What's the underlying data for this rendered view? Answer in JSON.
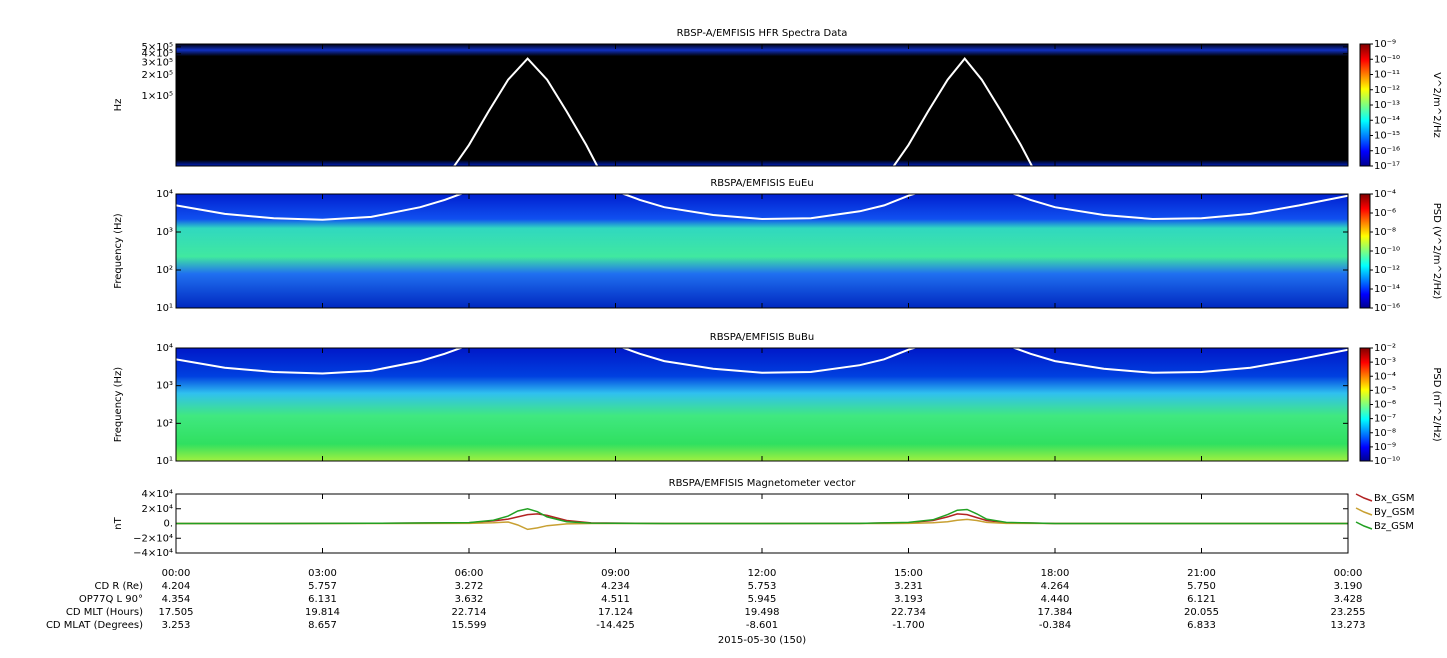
{
  "chart_data": [
    {
      "type": "spectrogram",
      "title": "RBSP-A/EMFISIS  HFR Spectra Data",
      "ylabel": "Hz",
      "log": true,
      "xlim": [
        0,
        24
      ],
      "xticks": [
        0,
        3,
        6,
        9,
        12,
        15,
        18,
        21,
        24
      ],
      "ylim": [
        10000,
        550000
      ],
      "yticks": [
        {
          "value": 100000,
          "label": "1×10⁵"
        },
        {
          "value": 200000,
          "label": "2×10⁵"
        },
        {
          "value": 300000,
          "label": "3×10⁵"
        },
        {
          "value": 400000,
          "label": "4×10⁵"
        },
        {
          "value": 500000,
          "label": "5×10⁵"
        }
      ],
      "colorbar_label": "V^2/m^2/Hz",
      "clim": [
        1e-17,
        1e-09
      ],
      "cticks": [
        {
          "value": 1e-17,
          "label": "10⁻¹⁷"
        },
        {
          "value": 1e-16,
          "label": "10⁻¹⁶"
        },
        {
          "value": 1e-15,
          "label": "10⁻¹⁵"
        },
        {
          "value": 1e-14,
          "label": "10⁻¹⁴"
        },
        {
          "value": 1e-13,
          "label": "10⁻¹³"
        },
        {
          "value": 1e-12,
          "label": "10⁻¹²"
        },
        {
          "value": 1e-11,
          "label": "10⁻¹¹"
        },
        {
          "value": 1e-10,
          "label": "10⁻¹⁰"
        },
        {
          "value": 1e-09,
          "label": "10⁻⁹"
        }
      ],
      "series": [
        {
          "color": "#ffffff",
          "x": [
            5.6,
            6.0,
            6.4,
            6.8,
            7.2,
            7.6,
            8.0,
            8.4,
            8.7,
            12,
            14.6,
            15.0,
            15.4,
            15.8,
            16.15,
            16.5,
            16.9,
            17.3,
            17.6
          ],
          "values": [
            8000,
            20000,
            60000,
            170000,
            340000,
            170000,
            60000,
            20000,
            8000,
            null,
            8000,
            20000,
            60000,
            170000,
            340000,
            170000,
            60000,
            20000,
            8000
          ]
        }
      ]
    },
    {
      "type": "spectrogram",
      "title": "RBSPA/EMFISIS  EuEu",
      "ylabel": "Frequency (Hz)",
      "log": true,
      "xlim": [
        0,
        24
      ],
      "xticks": [
        0,
        3,
        6,
        9,
        12,
        15,
        18,
        21,
        24
      ],
      "ylim": [
        10,
        10000
      ],
      "yticks": [
        {
          "value": 10,
          "label": "10¹"
        },
        {
          "value": 100,
          "label": "10²"
        },
        {
          "value": 1000,
          "label": "10³"
        },
        {
          "value": 10000,
          "label": "10⁴"
        }
      ],
      "colorbar_label": "PSD (V^2/m^2/Hz)",
      "clim": [
        1e-16,
        0.0001
      ],
      "cticks": [
        {
          "value": 1e-16,
          "label": "10⁻¹⁶"
        },
        {
          "value": 1e-14,
          "label": "10⁻¹⁴"
        },
        {
          "value": 1e-12,
          "label": "10⁻¹²"
        },
        {
          "value": 1e-10,
          "label": "10⁻¹⁰"
        },
        {
          "value": 1e-08,
          "label": "10⁻⁸"
        },
        {
          "value": 1e-06,
          "label": "10⁻⁶"
        },
        {
          "value": 0.0001,
          "label": "10⁻⁴"
        }
      ],
      "series": [
        {
          "color": "#ffffff",
          "x": [
            0,
            1,
            2,
            3,
            4,
            5,
            5.5,
            6,
            9,
            9.5,
            10,
            11,
            12,
            13,
            14,
            14.5,
            15,
            15.3,
            17,
            17.5,
            18,
            19,
            20,
            21,
            22,
            23,
            24
          ],
          "values": [
            5000,
            3000,
            2300,
            2100,
            2500,
            4500,
            7000,
            12000,
            12000,
            7000,
            4500,
            2800,
            2200,
            2300,
            3500,
            5000,
            9000,
            12000,
            12000,
            7000,
            4500,
            2800,
            2200,
            2300,
            3000,
            5000,
            9000
          ]
        }
      ]
    },
    {
      "type": "spectrogram",
      "title": "RBSPA/EMFISIS  BuBu",
      "ylabel": "Frequency (Hz)",
      "log": true,
      "xlim": [
        0,
        24
      ],
      "xticks": [
        0,
        3,
        6,
        9,
        12,
        15,
        18,
        21,
        24
      ],
      "ylim": [
        10,
        10000
      ],
      "yticks": [
        {
          "value": 10,
          "label": "10¹"
        },
        {
          "value": 100,
          "label": "10²"
        },
        {
          "value": 1000,
          "label": "10³"
        },
        {
          "value": 10000,
          "label": "10⁴"
        }
      ],
      "colorbar_label": "PSD (nT^2/Hz)",
      "clim": [
        1e-10,
        0.01
      ],
      "cticks": [
        {
          "value": 1e-10,
          "label": "10⁻¹⁰"
        },
        {
          "value": 1e-09,
          "label": "10⁻⁹"
        },
        {
          "value": 1e-08,
          "label": "10⁻⁸"
        },
        {
          "value": 1e-07,
          "label": "10⁻⁷"
        },
        {
          "value": 1e-06,
          "label": "10⁻⁶"
        },
        {
          "value": 1e-05,
          "label": "10⁻⁵"
        },
        {
          "value": 0.0001,
          "label": "10⁻⁴"
        },
        {
          "value": 0.001,
          "label": "10⁻³"
        },
        {
          "value": 0.01,
          "label": "10⁻²"
        }
      ],
      "series": [
        {
          "color": "#ffffff",
          "x": [
            0,
            1,
            2,
            3,
            4,
            5,
            5.5,
            6,
            9,
            9.5,
            10,
            11,
            12,
            13,
            14,
            14.5,
            15,
            15.3,
            17,
            17.5,
            18,
            19,
            20,
            21,
            22,
            23,
            24
          ],
          "values": [
            5000,
            3000,
            2300,
            2100,
            2500,
            4500,
            7000,
            12000,
            12000,
            7000,
            4500,
            2800,
            2200,
            2300,
            3500,
            5000,
            9000,
            12000,
            12000,
            7000,
            4500,
            2800,
            2200,
            2300,
            3000,
            5000,
            9000
          ]
        }
      ]
    },
    {
      "type": "line",
      "title": "RBSPA/EMFISIS  Magnetometer vector",
      "ylabel": "nT",
      "log": false,
      "xlim": [
        0,
        24
      ],
      "xticks": [
        {
          "value": 0,
          "label": "00:00"
        },
        {
          "value": 3,
          "label": "03:00"
        },
        {
          "value": 6,
          "label": "06:00"
        },
        {
          "value": 9,
          "label": "09:00"
        },
        {
          "value": 12,
          "label": "12:00"
        },
        {
          "value": 15,
          "label": "15:00"
        },
        {
          "value": 18,
          "label": "18:00"
        },
        {
          "value": 21,
          "label": "21:00"
        },
        {
          "value": 24,
          "label": "00:00"
        }
      ],
      "ylim": [
        -40000,
        40000
      ],
      "yticks": [
        {
          "value": -40000,
          "label": "−4×10⁴"
        },
        {
          "value": -20000,
          "label": "−2×10⁴"
        },
        {
          "value": 0,
          "label": "0."
        },
        {
          "value": 20000,
          "label": "2×10⁴"
        },
        {
          "value": 40000,
          "label": "4×10⁴"
        }
      ],
      "x": [
        0,
        2,
        4,
        6,
        6.5,
        6.8,
        7.0,
        7.2,
        7.4,
        7.6,
        8,
        8.5,
        10,
        12,
        14,
        15,
        15.5,
        15.8,
        16.0,
        16.2,
        16.4,
        16.6,
        17,
        18,
        20,
        22,
        24
      ],
      "series": [
        {
          "name": "Bx_GSM",
          "color": "#b22222",
          "values": [
            0,
            0,
            300,
            1000,
            3500,
            6000,
            9000,
            12000,
            13000,
            11000,
            4000,
            800,
            0,
            0,
            200,
            1200,
            4000,
            9000,
            13000,
            12000,
            8000,
            4000,
            1200,
            0,
            0,
            0,
            0
          ]
        },
        {
          "name": "By_GSM",
          "color": "#c8a032",
          "values": [
            0,
            0,
            0,
            200,
            1000,
            2000,
            -2000,
            -8000,
            -6000,
            -3000,
            -500,
            0,
            0,
            0,
            0,
            200,
            1000,
            2500,
            4500,
            5500,
            4000,
            1500,
            200,
            0,
            0,
            0,
            0
          ]
        },
        {
          "name": "Bz_GSM",
          "color": "#22a022",
          "values": [
            0,
            0,
            300,
            1200,
            4500,
            10000,
            17000,
            20000,
            16000,
            9000,
            2500,
            500,
            0,
            0,
            200,
            1500,
            5000,
            12000,
            18000,
            19000,
            13000,
            6000,
            1500,
            0,
            0,
            0,
            0
          ]
        }
      ]
    }
  ],
  "ephemeris": {
    "rows": [
      {
        "label": "CD R (Re)",
        "values": [
          "4.204",
          "5.757",
          "3.272",
          "4.234",
          "5.753",
          "3.231",
          "4.264",
          "5.750",
          "3.190"
        ]
      },
      {
        "label": "OP77Q L 90°",
        "values": [
          "4.354",
          "6.131",
          "3.632",
          "4.511",
          "5.945",
          "3.193",
          "4.440",
          "6.121",
          "3.428"
        ]
      },
      {
        "label": "CD MLT (Hours)",
        "values": [
          "17.505",
          "19.814",
          "22.714",
          "17.124",
          "19.498",
          "22.734",
          "17.384",
          "20.055",
          "23.255"
        ]
      },
      {
        "label": "CD MLAT (Degrees)",
        "values": [
          "3.253",
          "8.657",
          "15.599",
          "-14.425",
          "-8.601",
          "-1.700",
          "-0.384",
          "6.833",
          "13.273"
        ]
      }
    ],
    "date": "2015-05-30 (150)"
  }
}
